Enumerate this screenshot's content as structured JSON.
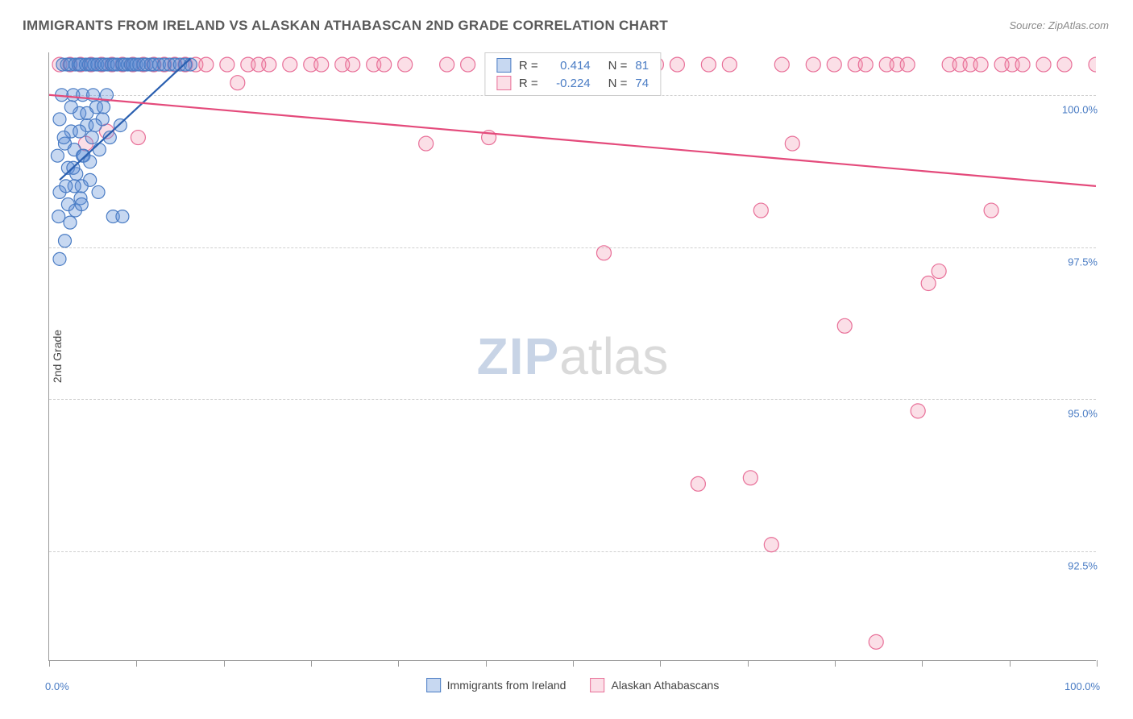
{
  "title": "IMMIGRANTS FROM IRELAND VS ALASKAN ATHABASCAN 2ND GRADE CORRELATION CHART",
  "source_label": "Source: ",
  "source_name": "ZipAtlas.com",
  "y_axis_label": "2nd Grade",
  "watermark_a": "ZIP",
  "watermark_b": "atlas",
  "chart": {
    "type": "scatter",
    "xlim": [
      0,
      100
    ],
    "ylim": [
      90.7,
      100.7
    ],
    "x_ticks": [
      0,
      50,
      100
    ],
    "x_tick_labels": [
      "0.0%",
      "",
      "100.0%"
    ],
    "x_minor_ticks": [
      8.33,
      16.67,
      25,
      33.33,
      41.67,
      58.33,
      66.67,
      75,
      83.33,
      91.67
    ],
    "y_ticks": [
      92.5,
      95.0,
      97.5,
      100.0
    ],
    "y_tick_labels": [
      "92.5%",
      "95.0%",
      "97.5%",
      "100.0%"
    ],
    "background_color": "#ffffff",
    "grid_color": "#d0d0d0",
    "series": [
      {
        "name": "Immigrants from Ireland",
        "color_fill": "rgba(94,144,215,0.35)",
        "color_stroke": "#4a7cc4",
        "marker_r": 8,
        "R": "0.414",
        "N": "81",
        "trend": {
          "x1": 1,
          "y1": 98.6,
          "x2": 13.5,
          "y2": 100.6,
          "stroke": "#2a5fb0",
          "width": 2.2
        },
        "points": [
          [
            0.8,
            99.0
          ],
          [
            1.0,
            99.6
          ],
          [
            1.2,
            100.0
          ],
          [
            1.3,
            100.5
          ],
          [
            1.5,
            99.2
          ],
          [
            1.7,
            100.5
          ],
          [
            1.8,
            98.8
          ],
          [
            2.0,
            100.5
          ],
          [
            2.1,
            99.4
          ],
          [
            2.3,
            100.0
          ],
          [
            2.4,
            99.1
          ],
          [
            2.5,
            100.5
          ],
          [
            2.6,
            98.7
          ],
          [
            2.8,
            100.5
          ],
          [
            2.9,
            99.7
          ],
          [
            3.0,
            100.5
          ],
          [
            3.1,
            98.5
          ],
          [
            3.2,
            100.0
          ],
          [
            3.3,
            99.0
          ],
          [
            3.5,
            100.5
          ],
          [
            3.6,
            99.5
          ],
          [
            3.8,
            100.5
          ],
          [
            3.9,
            98.6
          ],
          [
            4.0,
            100.5
          ],
          [
            4.1,
            99.3
          ],
          [
            4.2,
            100.0
          ],
          [
            4.3,
            100.5
          ],
          [
            4.5,
            99.8
          ],
          [
            4.6,
            100.5
          ],
          [
            4.8,
            99.1
          ],
          [
            5.0,
            100.5
          ],
          [
            5.1,
            99.6
          ],
          [
            5.3,
            100.5
          ],
          [
            5.5,
            100.0
          ],
          [
            5.6,
            100.5
          ],
          [
            5.8,
            99.3
          ],
          [
            6.0,
            100.5
          ],
          [
            6.2,
            100.5
          ],
          [
            6.5,
            100.5
          ],
          [
            6.8,
            99.5
          ],
          [
            7.0,
            100.5
          ],
          [
            7.2,
            100.5
          ],
          [
            7.5,
            100.5
          ],
          [
            7.8,
            100.5
          ],
          [
            8.0,
            100.5
          ],
          [
            8.3,
            100.5
          ],
          [
            8.6,
            100.5
          ],
          [
            9.0,
            100.5
          ],
          [
            9.3,
            100.5
          ],
          [
            9.7,
            100.5
          ],
          [
            10.0,
            100.5
          ],
          [
            10.5,
            100.5
          ],
          [
            11.0,
            100.5
          ],
          [
            11.5,
            100.5
          ],
          [
            12.0,
            100.5
          ],
          [
            12.5,
            100.5
          ],
          [
            13.0,
            100.5
          ],
          [
            13.5,
            100.5
          ],
          [
            1.0,
            97.3
          ],
          [
            1.5,
            97.6
          ],
          [
            2.0,
            97.9
          ],
          [
            2.5,
            98.1
          ],
          [
            3.0,
            98.3
          ],
          [
            1.0,
            98.4
          ],
          [
            1.8,
            98.2
          ],
          [
            2.4,
            98.5
          ],
          [
            3.2,
            99.0
          ],
          [
            1.4,
            99.3
          ],
          [
            2.1,
            99.8
          ],
          [
            2.9,
            99.4
          ],
          [
            3.6,
            99.7
          ],
          [
            4.4,
            99.5
          ],
          [
            5.2,
            99.8
          ],
          [
            0.9,
            98.0
          ],
          [
            1.6,
            98.5
          ],
          [
            2.3,
            98.8
          ],
          [
            3.1,
            98.2
          ],
          [
            3.9,
            98.9
          ],
          [
            4.7,
            98.4
          ],
          [
            6.1,
            98.0
          ],
          [
            7.0,
            98.0
          ]
        ]
      },
      {
        "name": "Alaskan Athabascans",
        "color_fill": "rgba(239,140,170,0.28)",
        "color_stroke": "#e86f98",
        "marker_r": 9,
        "R": "-0.224",
        "N": "74",
        "trend": {
          "x1": 0,
          "y1": 100.0,
          "x2": 100,
          "y2": 98.5,
          "stroke": "#e44a7b",
          "width": 2.2
        },
        "points": [
          [
            1.0,
            100.5
          ],
          [
            2.0,
            100.5
          ],
          [
            3.0,
            100.5
          ],
          [
            3.5,
            99.2
          ],
          [
            4.0,
            100.5
          ],
          [
            5.0,
            100.5
          ],
          [
            5.5,
            99.4
          ],
          [
            6.0,
            100.5
          ],
          [
            7.0,
            100.5
          ],
          [
            8.0,
            100.5
          ],
          [
            8.5,
            99.3
          ],
          [
            9.0,
            100.5
          ],
          [
            10.0,
            100.5
          ],
          [
            11.0,
            100.5
          ],
          [
            12.0,
            100.5
          ],
          [
            13.0,
            100.5
          ],
          [
            14.0,
            100.5
          ],
          [
            15.0,
            100.5
          ],
          [
            17.0,
            100.5
          ],
          [
            18.0,
            100.2
          ],
          [
            19.0,
            100.5
          ],
          [
            20.0,
            100.5
          ],
          [
            21.0,
            100.5
          ],
          [
            23.0,
            100.5
          ],
          [
            25.0,
            100.5
          ],
          [
            26.0,
            100.5
          ],
          [
            28.0,
            100.5
          ],
          [
            29.0,
            100.5
          ],
          [
            31.0,
            100.5
          ],
          [
            32.0,
            100.5
          ],
          [
            34.0,
            100.5
          ],
          [
            36.0,
            99.2
          ],
          [
            38.0,
            100.5
          ],
          [
            40.0,
            100.5
          ],
          [
            42.0,
            99.3
          ],
          [
            45.0,
            100.5
          ],
          [
            48.0,
            100.5
          ],
          [
            50.0,
            100.5
          ],
          [
            52.0,
            100.5
          ],
          [
            53.0,
            97.4
          ],
          [
            55.0,
            100.5
          ],
          [
            58.0,
            100.5
          ],
          [
            60.0,
            100.5
          ],
          [
            62.0,
            93.6
          ],
          [
            63.0,
            100.5
          ],
          [
            65.0,
            100.5
          ],
          [
            67.0,
            93.7
          ],
          [
            68.0,
            98.1
          ],
          [
            69.0,
            92.6
          ],
          [
            70.0,
            100.5
          ],
          [
            71.0,
            99.2
          ],
          [
            73.0,
            100.5
          ],
          [
            75.0,
            100.5
          ],
          [
            76.0,
            96.2
          ],
          [
            77.0,
            100.5
          ],
          [
            78.0,
            100.5
          ],
          [
            79.0,
            91.0
          ],
          [
            80.0,
            100.5
          ],
          [
            81.0,
            100.5
          ],
          [
            82.0,
            100.5
          ],
          [
            83.0,
            94.8
          ],
          [
            84.0,
            96.9
          ],
          [
            85.0,
            97.1
          ],
          [
            86.0,
            100.5
          ],
          [
            87.0,
            100.5
          ],
          [
            88.0,
            100.5
          ],
          [
            89.0,
            100.5
          ],
          [
            90.0,
            98.1
          ],
          [
            91.0,
            100.5
          ],
          [
            92.0,
            100.5
          ],
          [
            93.0,
            100.5
          ],
          [
            95.0,
            100.5
          ],
          [
            97.0,
            100.5
          ],
          [
            100.0,
            100.5
          ]
        ]
      }
    ]
  },
  "legend_top_rows": [
    {
      "swatch_fill": "rgba(94,144,215,0.35)",
      "swatch_stroke": "#4a7cc4",
      "R_label": "R =",
      "R": "0.414",
      "N_label": "N =",
      "N": "81"
    },
    {
      "swatch_fill": "rgba(239,140,170,0.28)",
      "swatch_stroke": "#e86f98",
      "R_label": "R =",
      "R": "-0.224",
      "N_label": "N =",
      "N": "74"
    }
  ],
  "legend_bottom": [
    {
      "swatch_fill": "rgba(94,144,215,0.35)",
      "swatch_stroke": "#4a7cc4",
      "label": "Immigrants from Ireland"
    },
    {
      "swatch_fill": "rgba(239,140,170,0.28)",
      "swatch_stroke": "#e86f98",
      "label": "Alaskan Athabascans"
    }
  ]
}
